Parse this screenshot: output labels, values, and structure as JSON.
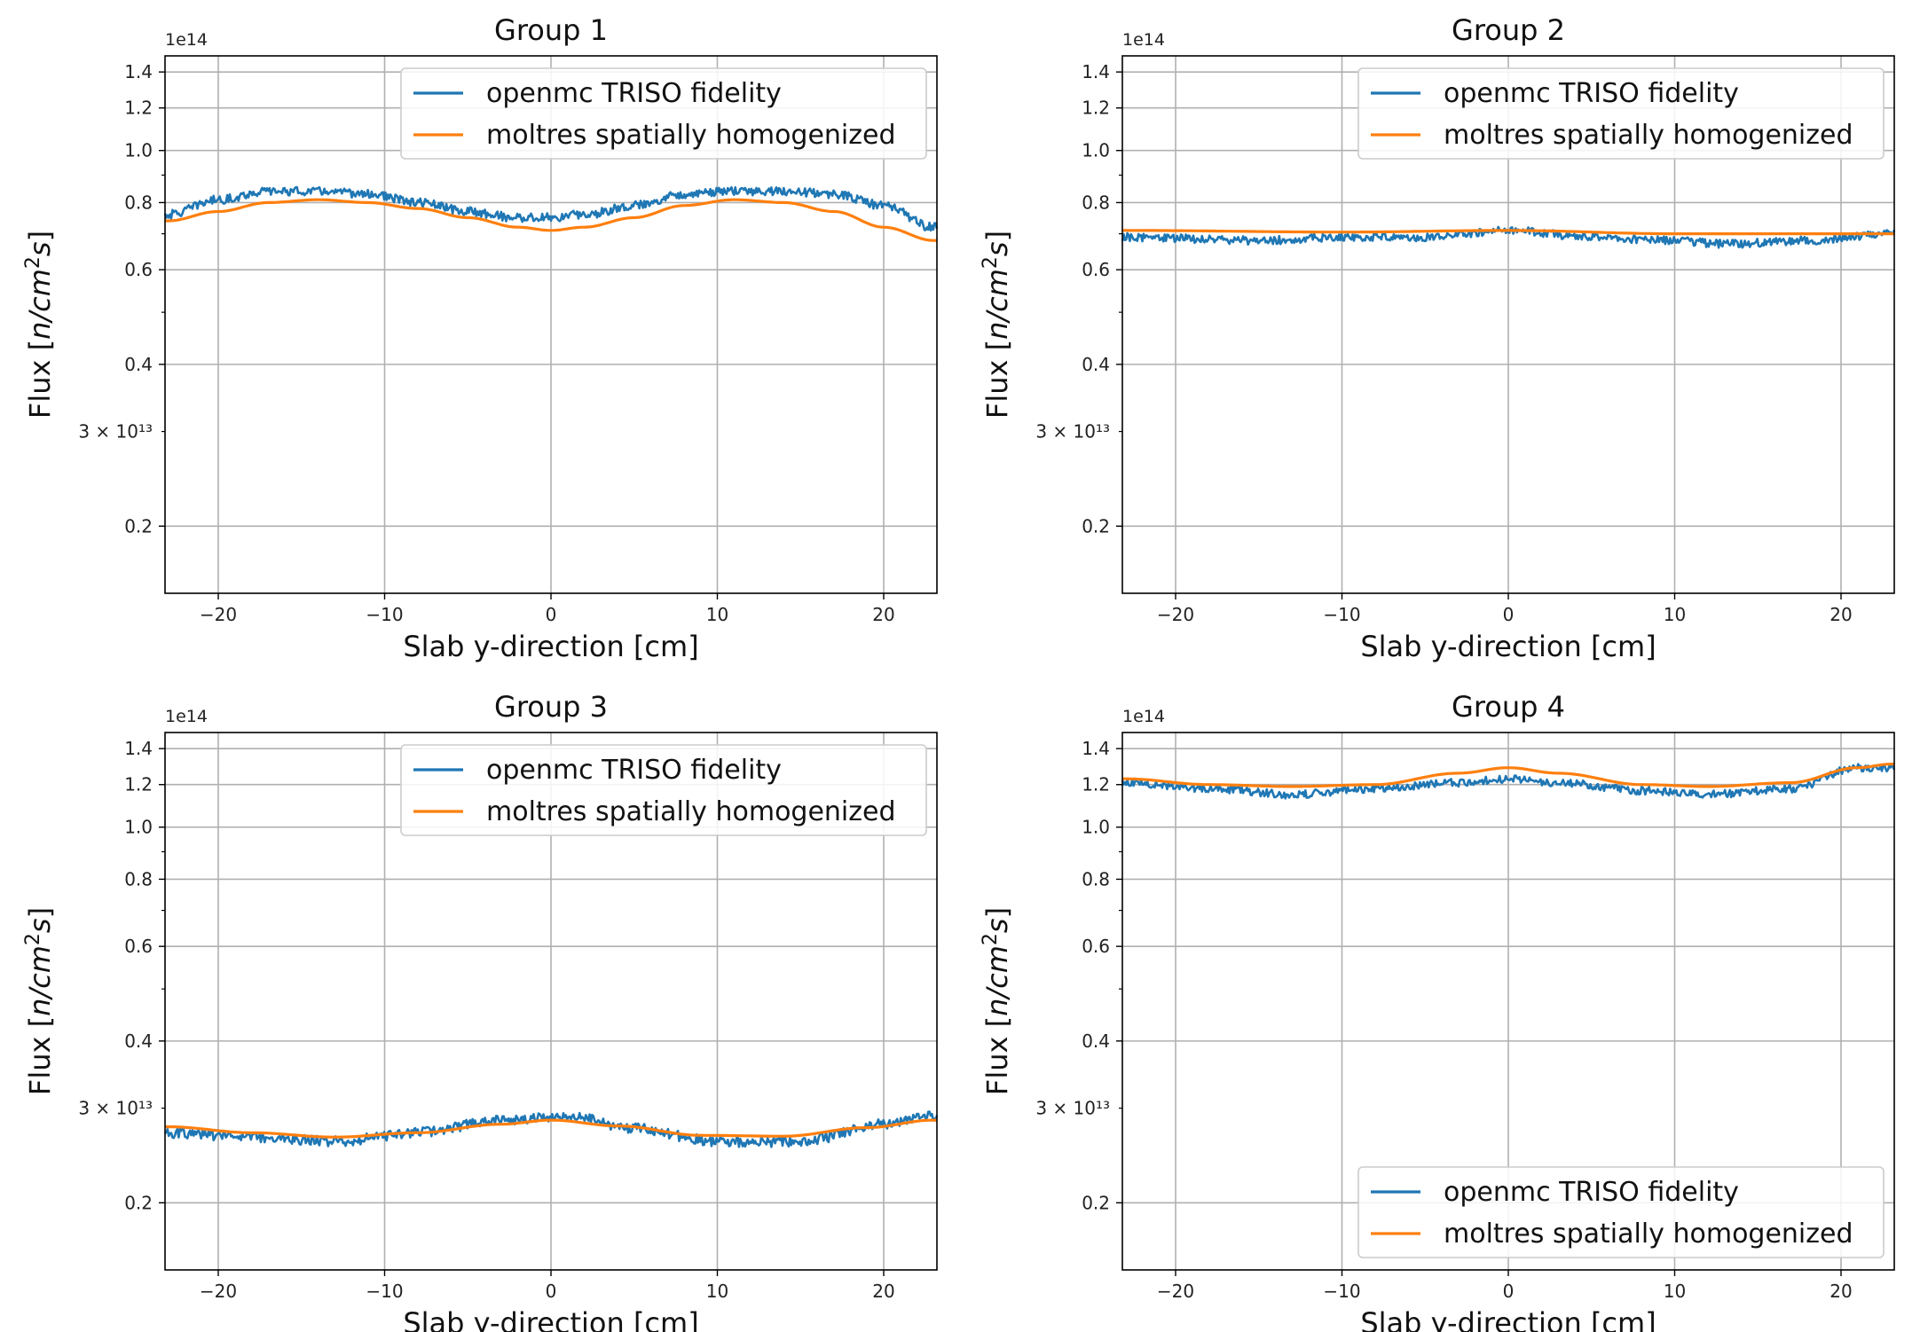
{
  "chart_data": [
    {
      "type": "line",
      "title": "Group 1",
      "xlabel": "Slab y-direction [cm]",
      "ylabel": "Flux [$n/cm^2s$]",
      "y_scale": "log",
      "y_offset_text": "1e14",
      "xlim": [
        -23.2,
        23.2
      ],
      "ylim": [
        0.15,
        1.5
      ],
      "x_ticks": [
        -20,
        -10,
        0,
        10,
        20
      ],
      "x_tick_labels": [
        "−20",
        "−10",
        "0",
        "10",
        "20"
      ],
      "y_ticks": [
        0.2,
        0.4,
        0.6,
        0.8,
        1.0,
        1.2,
        1.4
      ],
      "y_tick_labels": [
        "0.2",
        "0.4",
        "0.6",
        "0.8",
        "1.0",
        "1.2",
        "1.4"
      ],
      "y_minor_label": "3 × 10¹³",
      "grid": true,
      "legend_position": "upper right",
      "series": [
        {
          "name": "openmc TRISO fidelity",
          "color": "#1f77b4",
          "x": [
            -23,
            -20,
            -17,
            -14,
            -11,
            -8,
            -5,
            -2,
            0,
            2,
            5,
            8,
            11,
            14,
            17,
            20,
            23
          ],
          "values": [
            0.76,
            0.81,
            0.84,
            0.84,
            0.83,
            0.8,
            0.77,
            0.75,
            0.75,
            0.76,
            0.79,
            0.83,
            0.84,
            0.84,
            0.83,
            0.79,
            0.72
          ],
          "noise": 0.015
        },
        {
          "name": "moltres spatially homogenized",
          "color": "#ff7f0e",
          "x": [
            -23,
            -20,
            -17,
            -14,
            -11,
            -8,
            -5,
            -2,
            0,
            2,
            5,
            8,
            11,
            14,
            17,
            20,
            23
          ],
          "values": [
            0.74,
            0.77,
            0.8,
            0.81,
            0.8,
            0.78,
            0.75,
            0.72,
            0.71,
            0.72,
            0.75,
            0.79,
            0.81,
            0.8,
            0.77,
            0.72,
            0.68
          ],
          "noise": 0
        }
      ]
    },
    {
      "type": "line",
      "title": "Group 2",
      "xlabel": "Slab y-direction [cm]",
      "ylabel": "Flux [$n/cm^2s$]",
      "y_scale": "log",
      "y_offset_text": "1e14",
      "xlim": [
        -23.2,
        23.2
      ],
      "ylim": [
        0.15,
        1.5
      ],
      "x_ticks": [
        -20,
        -10,
        0,
        10,
        20
      ],
      "x_tick_labels": [
        "−20",
        "−10",
        "0",
        "10",
        "20"
      ],
      "y_ticks": [
        0.2,
        0.4,
        0.6,
        0.8,
        1.0,
        1.2,
        1.4
      ],
      "y_tick_labels": [
        "0.2",
        "0.4",
        "0.6",
        "0.8",
        "1.0",
        "1.2",
        "1.4"
      ],
      "y_minor_label": "3 × 10¹³",
      "grid": true,
      "legend_position": "upper right",
      "series": [
        {
          "name": "openmc TRISO fidelity",
          "color": "#1f77b4",
          "x": [
            -23,
            -15,
            -10,
            -5,
            0,
            5,
            10,
            13,
            18,
            23
          ],
          "values": [
            0.69,
            0.68,
            0.69,
            0.69,
            0.71,
            0.69,
            0.68,
            0.67,
            0.68,
            0.7
          ],
          "noise": 0.012
        },
        {
          "name": "moltres spatially homogenized",
          "color": "#ff7f0e",
          "x": [
            -23,
            -10,
            0,
            10,
            23
          ],
          "values": [
            0.71,
            0.705,
            0.71,
            0.7,
            0.7
          ],
          "noise": 0
        }
      ]
    },
    {
      "type": "line",
      "title": "Group 3",
      "xlabel": "Slab y-direction [cm]",
      "ylabel": "Flux [$n/cm^2s$]",
      "y_scale": "log",
      "y_offset_text": "1e14",
      "xlim": [
        -23.2,
        23.2
      ],
      "ylim": [
        0.15,
        1.5
      ],
      "x_ticks": [
        -20,
        -10,
        0,
        10,
        20
      ],
      "x_tick_labels": [
        "−20",
        "−10",
        "0",
        "10",
        "20"
      ],
      "y_ticks": [
        0.2,
        0.4,
        0.6,
        0.8,
        1.0,
        1.2,
        1.4
      ],
      "y_tick_labels": [
        "0.2",
        "0.4",
        "0.6",
        "0.8",
        "1.0",
        "1.2",
        "1.4"
      ],
      "y_minor_label": "3 × 10¹³",
      "grid": true,
      "legend_position": "upper right",
      "series": [
        {
          "name": "openmc TRISO fidelity",
          "color": "#1f77b4",
          "x": [
            -23,
            -18,
            -13,
            -8,
            -3,
            1,
            5,
            10,
            15,
            20,
            23
          ],
          "values": [
            0.27,
            0.265,
            0.26,
            0.27,
            0.285,
            0.29,
            0.275,
            0.26,
            0.26,
            0.28,
            0.29
          ],
          "noise": 0.006
        },
        {
          "name": "moltres spatially homogenized",
          "color": "#ff7f0e",
          "x": [
            -23,
            -18,
            -13,
            -8,
            -3,
            0,
            4,
            9,
            14,
            19,
            23
          ],
          "values": [
            0.277,
            0.27,
            0.265,
            0.27,
            0.28,
            0.285,
            0.278,
            0.267,
            0.266,
            0.276,
            0.285
          ],
          "noise": 0
        }
      ]
    },
    {
      "type": "line",
      "title": "Group 4",
      "xlabel": "Slab y-direction [cm]",
      "ylabel": "Flux [$n/cm^2s$]",
      "y_scale": "log",
      "y_offset_text": "1e14",
      "xlim": [
        -23.2,
        23.2
      ],
      "ylim": [
        0.15,
        1.5
      ],
      "x_ticks": [
        -20,
        -10,
        0,
        10,
        20
      ],
      "x_tick_labels": [
        "−20",
        "−10",
        "0",
        "10",
        "20"
      ],
      "y_ticks": [
        0.2,
        0.4,
        0.6,
        0.8,
        1.0,
        1.2,
        1.4
      ],
      "y_tick_labels": [
        "0.2",
        "0.4",
        "0.6",
        "0.8",
        "1.0",
        "1.2",
        "1.4"
      ],
      "y_minor_label": "3 × 10¹³",
      "grid": true,
      "legend_position": "lower right",
      "series": [
        {
          "name": "openmc TRISO fidelity",
          "color": "#1f77b4",
          "x": [
            -23,
            -18,
            -13,
            -8,
            -3,
            0,
            3,
            8,
            12,
            17,
            21,
            23
          ],
          "values": [
            1.21,
            1.18,
            1.15,
            1.18,
            1.21,
            1.23,
            1.21,
            1.17,
            1.15,
            1.18,
            1.29,
            1.29
          ],
          "noise": 0.02
        },
        {
          "name": "moltres spatially homogenized",
          "color": "#ff7f0e",
          "x": [
            -23,
            -18,
            -13,
            -8,
            -3,
            0,
            3,
            8,
            12,
            17,
            21,
            23
          ],
          "values": [
            1.23,
            1.2,
            1.19,
            1.2,
            1.26,
            1.29,
            1.26,
            1.2,
            1.19,
            1.21,
            1.29,
            1.31
          ],
          "noise": 0
        }
      ]
    }
  ]
}
